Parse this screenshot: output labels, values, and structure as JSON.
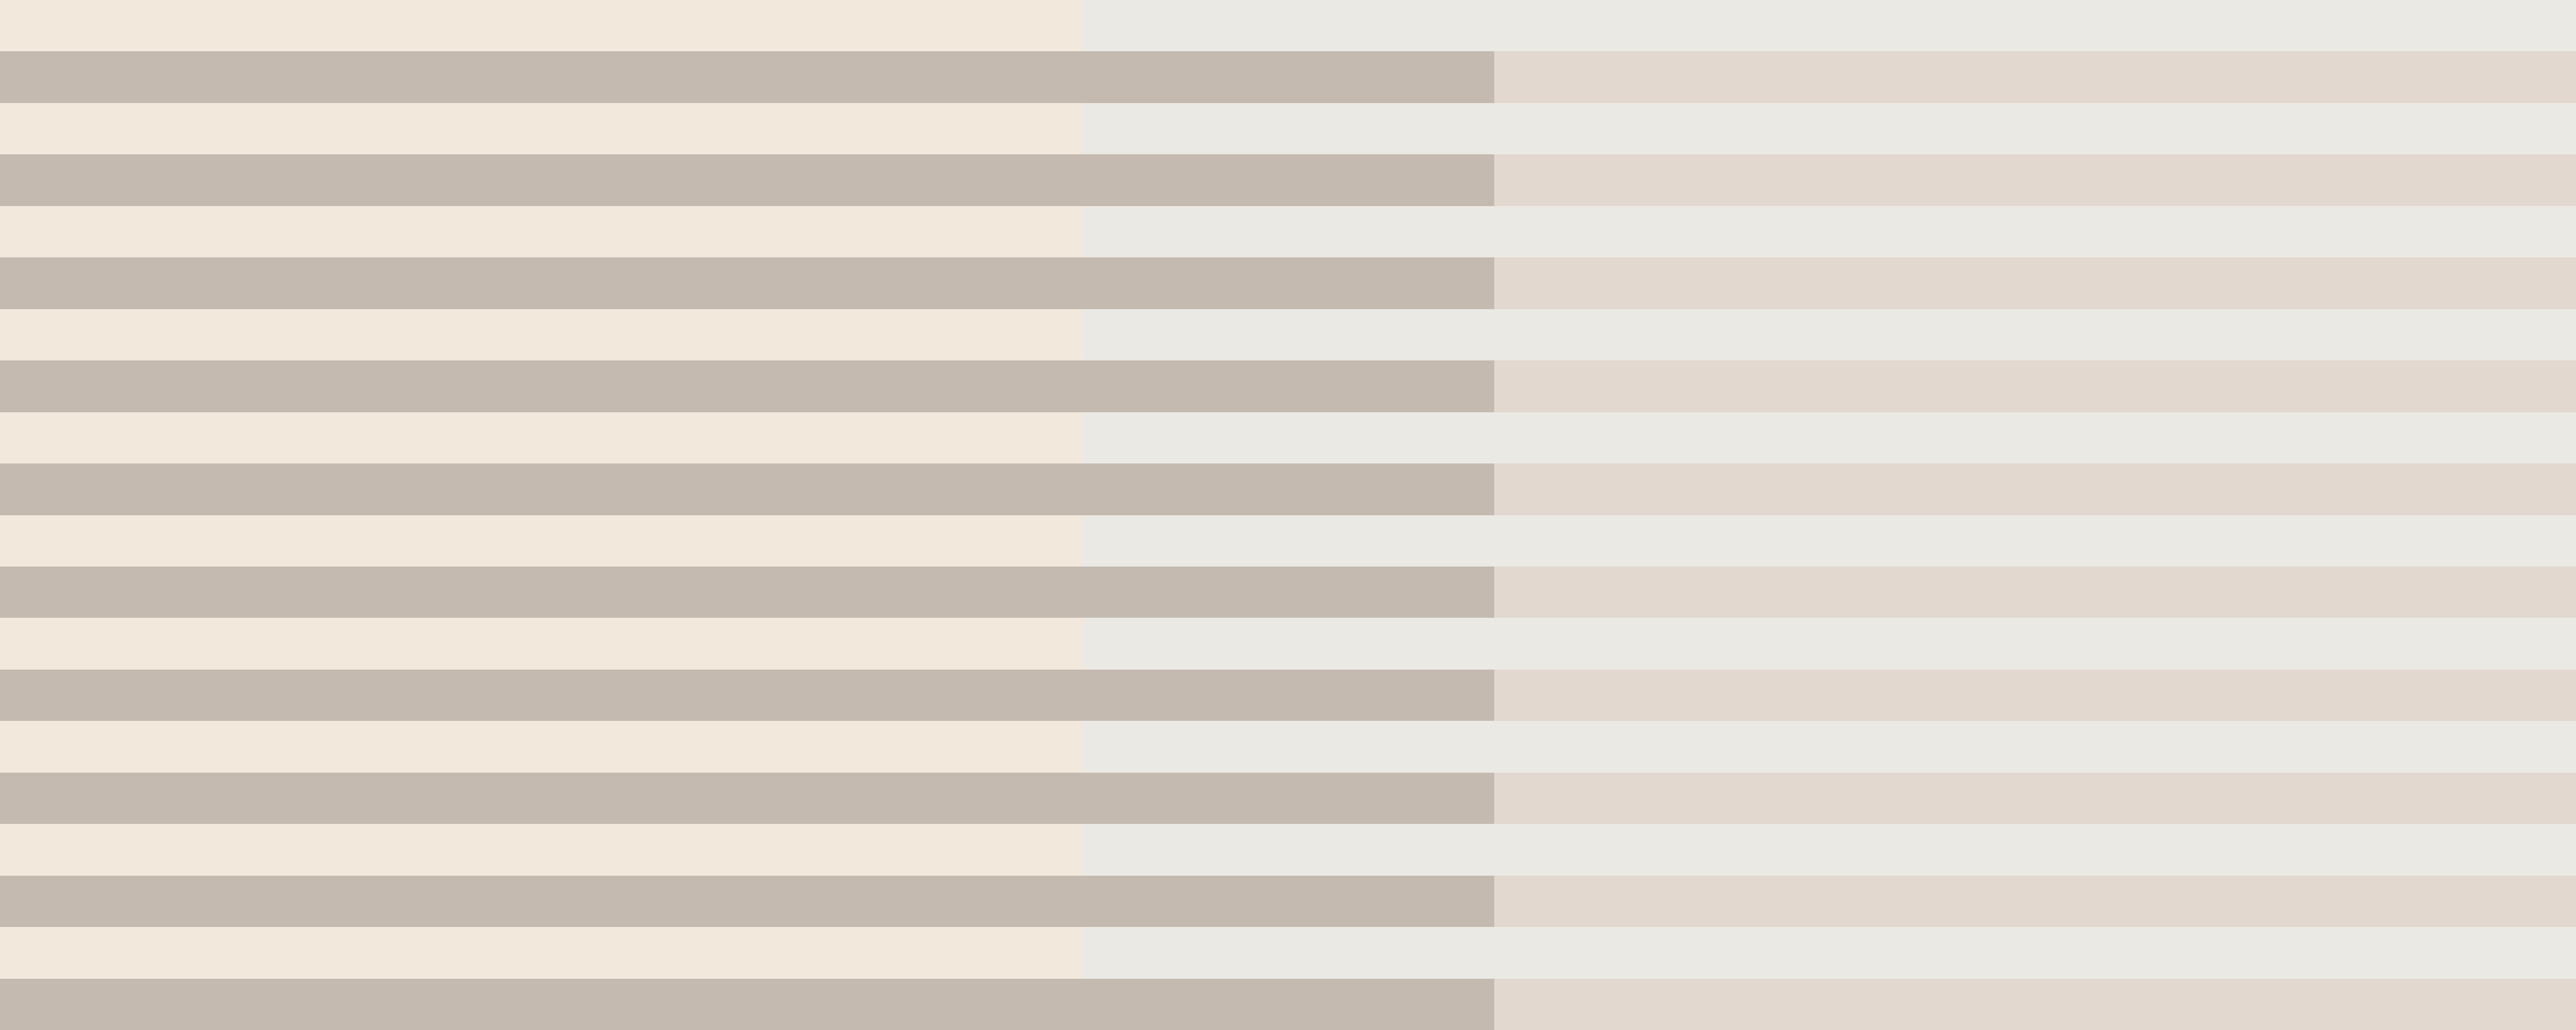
{
  "pattern": {
    "stripe_count": 20,
    "first_stripe": "light",
    "colors": {
      "light_left": "#F2E8DC",
      "light_right": "#EBE9E3",
      "dark_left": "#C4BAB0",
      "dark_right": "#E2D8CF"
    }
  }
}
